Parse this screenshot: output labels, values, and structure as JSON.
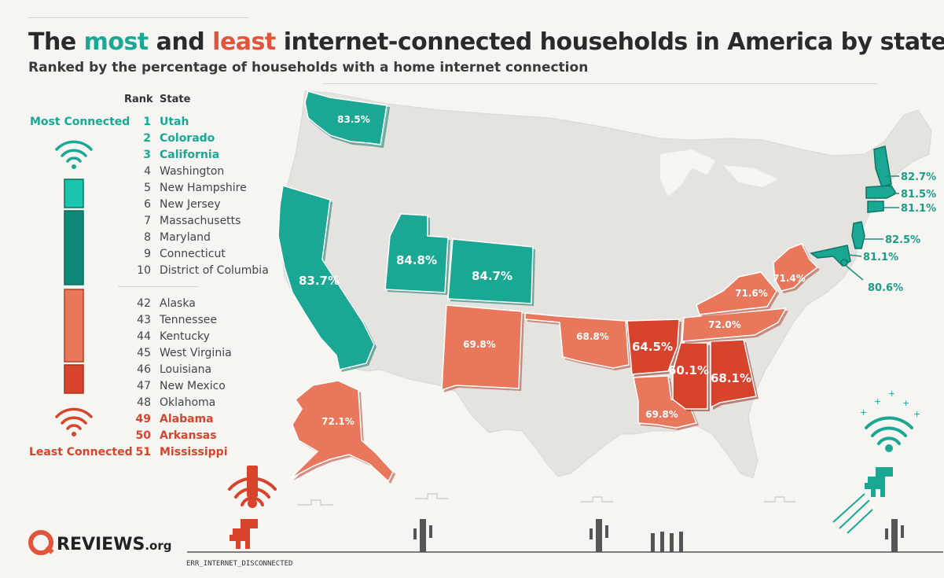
{
  "title": {
    "part1": "The ",
    "most": "most",
    "part2": " and ",
    "least": "least",
    "part3": " internet-connected households in America by state"
  },
  "subtitle": "Ranked by the percentage of households with a home internet connection",
  "legend": {
    "rank_header": "Rank",
    "state_header": "State",
    "most_label": "Most Connected",
    "least_label": "Least Connected",
    "top_states": [
      {
        "rank": "1",
        "state": "Utah"
      },
      {
        "rank": "2",
        "state": "Colorado"
      },
      {
        "rank": "3",
        "state": "California"
      },
      {
        "rank": "4",
        "state": "Washington"
      },
      {
        "rank": "5",
        "state": "New Hampshire"
      },
      {
        "rank": "6",
        "state": "New Jersey"
      },
      {
        "rank": "7",
        "state": "Massachusetts"
      },
      {
        "rank": "8",
        "state": "Maryland"
      },
      {
        "rank": "9",
        "state": "Connecticut"
      },
      {
        "rank": "10",
        "state": "District of Columbia"
      }
    ],
    "bottom_states": [
      {
        "rank": "42",
        "state": "Alaska"
      },
      {
        "rank": "43",
        "state": "Tennessee"
      },
      {
        "rank": "44",
        "state": "Kentucky"
      },
      {
        "rank": "45",
        "state": "West Virginia"
      },
      {
        "rank": "46",
        "state": "Louisiana"
      },
      {
        "rank": "47",
        "state": "New Mexico"
      },
      {
        "rank": "48",
        "state": "Oklahoma"
      },
      {
        "rank": "49",
        "state": "Alabama"
      },
      {
        "rank": "50",
        "state": "Arkansas"
      },
      {
        "rank": "51",
        "state": "Mississippi"
      }
    ]
  },
  "map_values": {
    "washington": "83.5%",
    "california": "83.7%",
    "utah": "84.8%",
    "colorado": "84.7%",
    "new_mexico": "69.8%",
    "oklahoma": "68.8%",
    "arkansas": "64.5%",
    "louisiana": "69.8%",
    "mississippi": "60.1%",
    "alabama": "68.1%",
    "tennessee": "72.0%",
    "kentucky": "71.6%",
    "west_virginia": "71.4%",
    "alaska": "72.1%",
    "new_hampshire": "82.7%",
    "massachusetts": "81.5%",
    "connecticut": "81.1%",
    "new_jersey": "82.5%",
    "maryland": "81.1%",
    "district_of_columbia": "80.6%"
  },
  "colors": {
    "most": "#1aa894",
    "most_dark": "#0f8a78",
    "least": "#e0553c",
    "least_light": "#e8775c",
    "base_map": "#e4e3df",
    "background": "#f6f5f2"
  },
  "brand": {
    "name": "REVIEWS",
    "suffix": ".org"
  },
  "error_text": "ERR_INTERNET_DISCONNECTED"
}
